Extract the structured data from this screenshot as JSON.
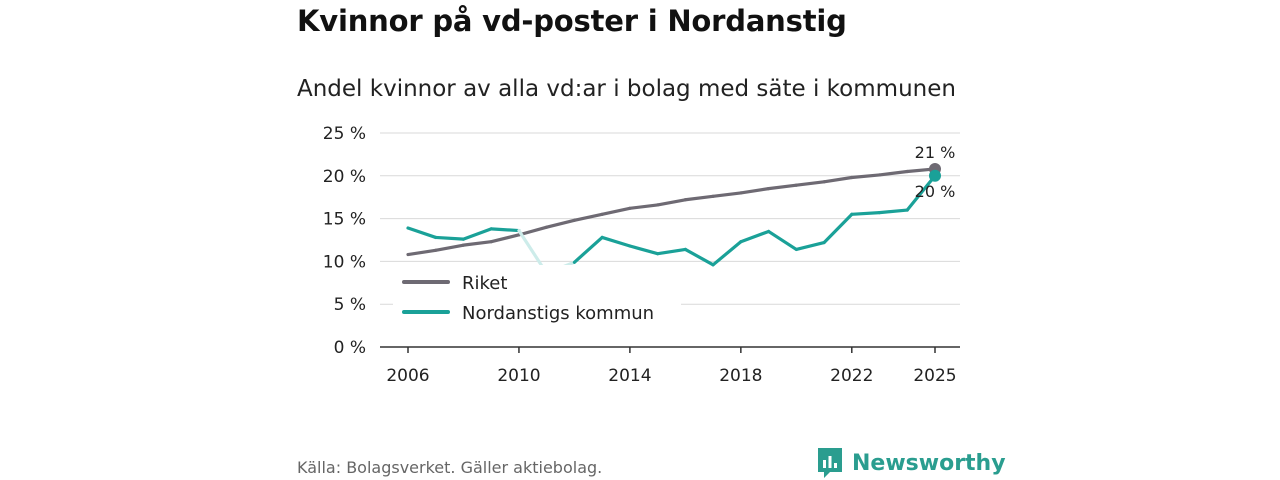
{
  "title": "Kvinnor på vd-poster i Nordanstig",
  "subtitle": "Andel kvinnor av alla vd:ar i bolag med säte i kommunen",
  "source": "Källa: Bolagsverket. Gäller aktiebolag.",
  "brand": "Newsworthy",
  "chart_data": {
    "type": "line",
    "title": "Kvinnor på vd-poster i Nordanstig",
    "subtitle": "Andel kvinnor av alla vd:ar i bolag med säte i kommunen",
    "xlabel": "",
    "ylabel": "",
    "x": [
      2006,
      2007,
      2008,
      2009,
      2010,
      2011,
      2012,
      2013,
      2014,
      2015,
      2016,
      2017,
      2018,
      2019,
      2020,
      2021,
      2022,
      2023,
      2024,
      2025
    ],
    "xlim": [
      2006,
      2025
    ],
    "xticks": [
      "2006",
      "2010",
      "2014",
      "2018",
      "2022",
      "2025"
    ],
    "xtick_values": [
      2006,
      2010,
      2014,
      2018,
      2022,
      2025
    ],
    "ylim": [
      0,
      25
    ],
    "yticks": [
      "0 %",
      "5 %",
      "10 %",
      "15 %",
      "20 %",
      "25 %"
    ],
    "ytick_values": [
      0,
      5,
      10,
      15,
      20,
      25
    ],
    "grid": true,
    "legend_position": "bottom-left",
    "series": [
      {
        "name": "Riket",
        "color": "#6e6a73",
        "values": [
          10.8,
          11.3,
          11.9,
          12.3,
          13.1,
          14.0,
          14.8,
          15.5,
          16.2,
          16.6,
          17.2,
          17.6,
          18.0,
          18.5,
          18.9,
          19.3,
          19.8,
          20.1,
          20.5,
          20.8
        ],
        "end_label": "21 %"
      },
      {
        "name": "Nordanstigs kommun",
        "color": "#1aa198",
        "faded_color": "#cdecea",
        "faded_years": [
          2011
        ],
        "values": [
          13.9,
          12.8,
          12.6,
          13.8,
          13.6,
          8.6,
          9.9,
          12.8,
          11.8,
          10.9,
          11.4,
          9.6,
          12.3,
          13.5,
          11.4,
          12.2,
          15.5,
          15.7,
          16.0,
          20.0
        ],
        "end_label": "20 %"
      }
    ]
  }
}
